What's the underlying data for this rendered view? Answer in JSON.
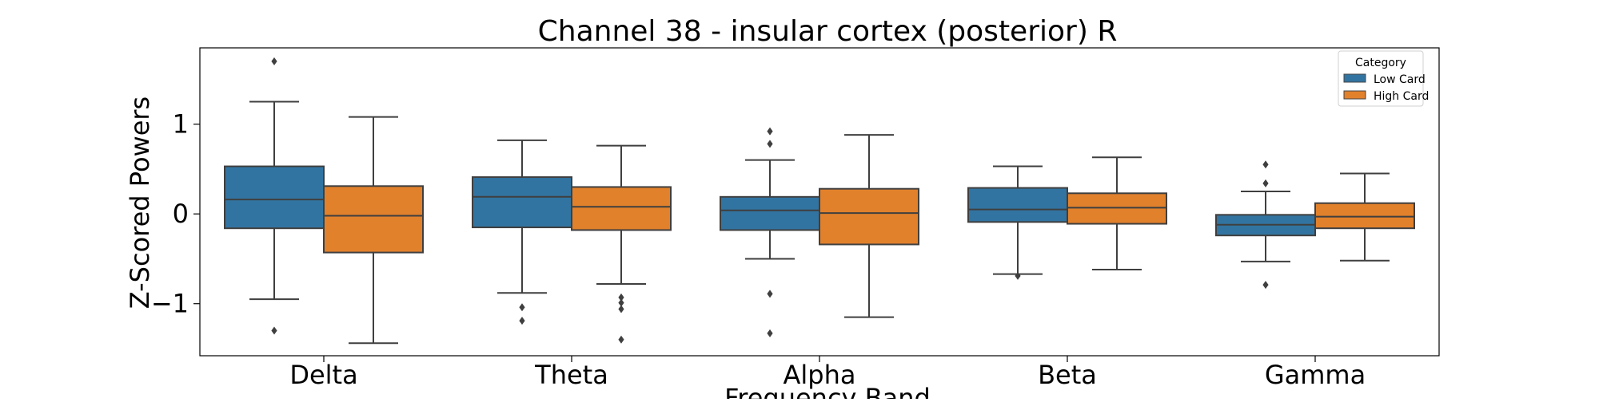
{
  "chart_data": {
    "type": "box",
    "title": "Channel 38 - insular cortex (posterior) R",
    "xlabel": "Frequency Band",
    "ylabel": "Z-Scored Powers",
    "categories": [
      "Delta",
      "Theta",
      "Alpha",
      "Beta",
      "Gamma"
    ],
    "ylim": [
      -1.58,
      1.85
    ],
    "yticks": [
      {
        "value": 1,
        "label": "1"
      },
      {
        "value": 0,
        "label": "0"
      },
      {
        "value": -1,
        "label": "−1"
      }
    ],
    "grid": false,
    "legend": {
      "title": "Category",
      "placement": "top-right"
    },
    "series": [
      {
        "name": "Low Card",
        "color": "#3274a1",
        "boxes": [
          {
            "category": "Delta",
            "whisker_low": -0.95,
            "q1": -0.16,
            "median": 0.16,
            "q3": 0.53,
            "whisker_high": 1.25,
            "outliers": [
              1.7,
              -1.3
            ]
          },
          {
            "category": "Theta",
            "whisker_low": -0.88,
            "q1": -0.15,
            "median": 0.19,
            "q3": 0.41,
            "whisker_high": 0.82,
            "outliers": [
              -1.04,
              -1.19
            ]
          },
          {
            "category": "Alpha",
            "whisker_low": -0.5,
            "q1": -0.18,
            "median": 0.04,
            "q3": 0.19,
            "whisker_high": 0.6,
            "outliers": [
              0.92,
              0.78,
              -0.89,
              -1.33
            ]
          },
          {
            "category": "Beta",
            "whisker_low": -0.67,
            "q1": -0.09,
            "median": 0.05,
            "q3": 0.29,
            "whisker_high": 0.53,
            "outliers": [
              -0.69
            ]
          },
          {
            "category": "Gamma",
            "whisker_low": -0.53,
            "q1": -0.24,
            "median": -0.12,
            "q3": -0.01,
            "whisker_high": 0.25,
            "outliers": [
              0.55,
              0.34,
              -0.79
            ]
          }
        ]
      },
      {
        "name": "High Card",
        "color": "#e1812c",
        "boxes": [
          {
            "category": "Delta",
            "whisker_low": -1.44,
            "q1": -0.43,
            "median": -0.02,
            "q3": 0.31,
            "whisker_high": 1.08,
            "outliers": []
          },
          {
            "category": "Theta",
            "whisker_low": -0.78,
            "q1": -0.18,
            "median": 0.08,
            "q3": 0.3,
            "whisker_high": 0.76,
            "outliers": [
              -0.93,
              -0.99,
              -1.06,
              -1.4
            ]
          },
          {
            "category": "Alpha",
            "whisker_low": -1.15,
            "q1": -0.34,
            "median": 0.01,
            "q3": 0.28,
            "whisker_high": 0.88,
            "outliers": []
          },
          {
            "category": "Beta",
            "whisker_low": -0.62,
            "q1": -0.11,
            "median": 0.07,
            "q3": 0.23,
            "whisker_high": 0.63,
            "outliers": []
          },
          {
            "category": "Gamma",
            "whisker_low": -0.52,
            "q1": -0.16,
            "median": -0.03,
            "q3": 0.12,
            "whisker_high": 0.45,
            "outliers": []
          }
        ]
      }
    ]
  }
}
